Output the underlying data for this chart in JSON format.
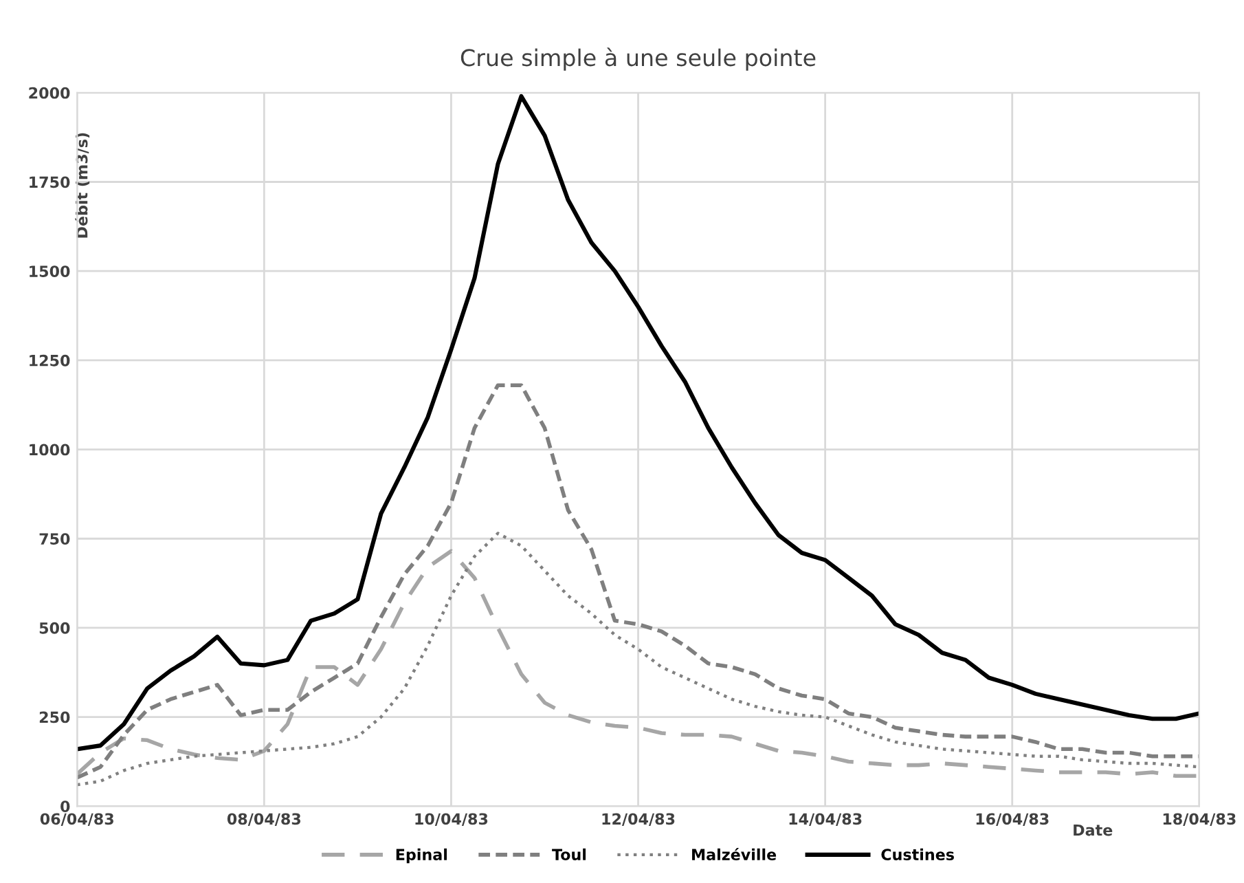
{
  "chart_data": {
    "type": "line",
    "title": "Crue simple à une seule pointe",
    "xlabel": "Date",
    "ylabel": "Débit (m3/s)",
    "x": [
      "1983-04-06T00:00",
      "1983-04-06T06:00",
      "1983-04-06T12:00",
      "1983-04-06T18:00",
      "1983-04-07T00:00",
      "1983-04-07T06:00",
      "1983-04-07T12:00",
      "1983-04-07T18:00",
      "1983-04-08T00:00",
      "1983-04-08T06:00",
      "1983-04-08T12:00",
      "1983-04-08T18:00",
      "1983-04-09T00:00",
      "1983-04-09T06:00",
      "1983-04-09T12:00",
      "1983-04-09T18:00",
      "1983-04-10T00:00",
      "1983-04-10T06:00",
      "1983-04-10T12:00",
      "1983-04-10T18:00",
      "1983-04-11T00:00",
      "1983-04-11T06:00",
      "1983-04-11T12:00",
      "1983-04-11T18:00",
      "1983-04-12T00:00",
      "1983-04-12T06:00",
      "1983-04-12T12:00",
      "1983-04-12T18:00",
      "1983-04-13T00:00",
      "1983-04-13T06:00",
      "1983-04-13T12:00",
      "1983-04-13T18:00",
      "1983-04-14T00:00",
      "1983-04-14T06:00",
      "1983-04-14T12:00",
      "1983-04-14T18:00",
      "1983-04-15T00:00",
      "1983-04-15T06:00",
      "1983-04-15T12:00",
      "1983-04-15T18:00",
      "1983-04-16T00:00",
      "1983-04-16T06:00",
      "1983-04-16T12:00",
      "1983-04-16T18:00",
      "1983-04-17T00:00",
      "1983-04-17T06:00",
      "1983-04-17T12:00",
      "1983-04-17T18:00",
      "1983-04-18T00:00"
    ],
    "series": [
      {
        "name": "Epinal",
        "color": "#a6a6a6",
        "line_style": "dashed",
        "values": [
          90,
          150,
          190,
          185,
          160,
          145,
          135,
          130,
          155,
          230,
          390,
          390,
          340,
          440,
          570,
          670,
          715,
          640,
          500,
          370,
          290,
          255,
          235,
          225,
          220,
          205,
          200,
          200,
          195,
          175,
          155,
          150,
          140,
          125,
          120,
          115,
          115,
          120,
          115,
          110,
          105,
          100,
          95,
          95,
          95,
          90,
          95,
          85,
          85
        ]
      },
      {
        "name": "Toul",
        "color": "#7f7f7f",
        "line_style": "dashed",
        "values": [
          80,
          110,
          200,
          270,
          300,
          320,
          340,
          255,
          270,
          270,
          320,
          360,
          400,
          530,
          650,
          730,
          850,
          1060,
          1180,
          1180,
          1060,
          830,
          720,
          520,
          510,
          490,
          450,
          400,
          390,
          370,
          330,
          310,
          300,
          260,
          250,
          220,
          210,
          200,
          195,
          195,
          195,
          180,
          160,
          160,
          150,
          150,
          140,
          140,
          140
        ]
      },
      {
        "name": "Malzéville",
        "color": "#808080",
        "line_style": "dotted",
        "values": [
          60,
          70,
          100,
          120,
          130,
          140,
          145,
          150,
          155,
          160,
          165,
          175,
          195,
          250,
          330,
          450,
          590,
          700,
          765,
          730,
          660,
          590,
          540,
          480,
          440,
          390,
          360,
          330,
          300,
          280,
          265,
          255,
          250,
          225,
          200,
          180,
          170,
          160,
          155,
          150,
          145,
          140,
          140,
          130,
          125,
          120,
          120,
          115,
          110
        ]
      },
      {
        "name": "Custines",
        "color": "#000000",
        "line_style": "solid",
        "values": [
          160,
          170,
          230,
          330,
          380,
          420,
          475,
          400,
          395,
          410,
          520,
          540,
          580,
          820,
          950,
          1090,
          1280,
          1480,
          1800,
          1990,
          1880,
          1700,
          1580,
          1500,
          1400,
          1290,
          1190,
          1060,
          950,
          850,
          760,
          710,
          690,
          640,
          590,
          510,
          480,
          430,
          410,
          360,
          340,
          315,
          300,
          285,
          270,
          255,
          245,
          245,
          260
        ]
      }
    ],
    "xlim": [
      "1983-04-06",
      "1983-04-18"
    ],
    "xticks": [
      {
        "value": "1983-04-06",
        "label": "06/04/83"
      },
      {
        "value": "1983-04-08",
        "label": "08/04/83"
      },
      {
        "value": "1983-04-10",
        "label": "10/04/83"
      },
      {
        "value": "1983-04-12",
        "label": "12/04/83"
      },
      {
        "value": "1983-04-14",
        "label": "14/04/83"
      },
      {
        "value": "1983-04-16",
        "label": "16/04/83"
      },
      {
        "value": "1983-04-18",
        "label": "18/04/83"
      }
    ],
    "ylim": [
      0,
      2000
    ],
    "yticks": [
      0,
      250,
      500,
      750,
      1000,
      1250,
      1500,
      1750,
      2000
    ],
    "grid": true,
    "legend": "bottom",
    "marker": "none"
  }
}
